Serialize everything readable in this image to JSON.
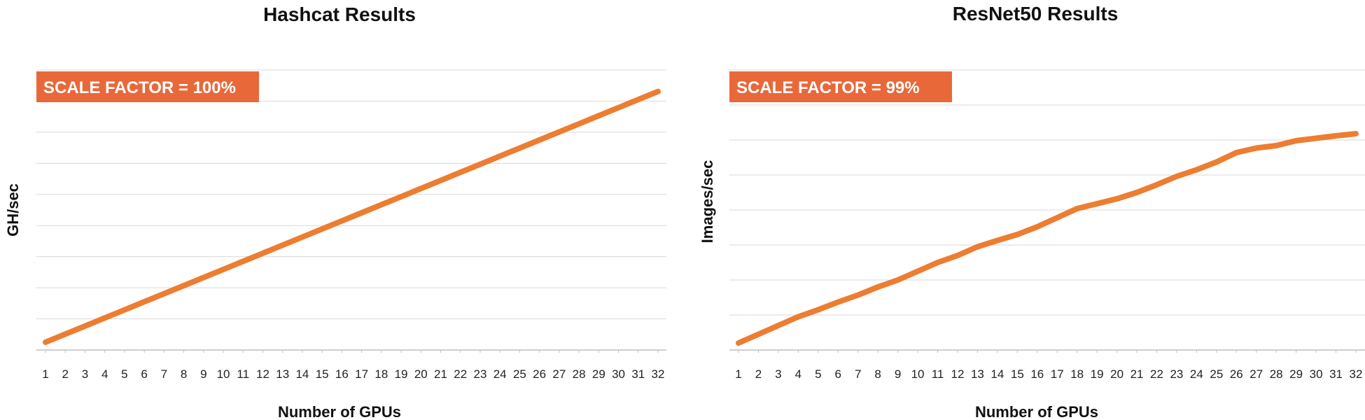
{
  "colors": {
    "line": "#ED7D31",
    "badge": "#E8683A",
    "grid": "#D9D9D9",
    "axis": "#BFBFBF"
  },
  "chart_data": [
    {
      "type": "line",
      "title": "Hashcat Results",
      "xlabel": "Number of GPUs",
      "ylabel": "GH/sec",
      "annotation": "SCALE FACTOR = 100%",
      "grid": true,
      "y_tick_labels_shown": false,
      "gridline_count": 9,
      "ylim": [
        0,
        9
      ],
      "x": [
        1,
        2,
        3,
        4,
        5,
        6,
        7,
        8,
        9,
        10,
        11,
        12,
        13,
        14,
        15,
        16,
        17,
        18,
        19,
        20,
        21,
        22,
        23,
        24,
        25,
        26,
        27,
        28,
        29,
        30,
        31,
        32
      ],
      "series": [
        {
          "values": [
            0.25,
            0.51,
            0.77,
            1.03,
            1.29,
            1.55,
            1.81,
            2.07,
            2.33,
            2.59,
            2.85,
            3.11,
            3.37,
            3.63,
            3.89,
            4.15,
            4.41,
            4.67,
            4.93,
            5.19,
            5.45,
            5.71,
            5.97,
            6.23,
            6.49,
            6.75,
            7.01,
            7.27,
            7.53,
            7.79,
            8.05,
            8.31
          ]
        }
      ]
    },
    {
      "type": "line",
      "title": "ResNet50 Results",
      "xlabel": "Number of GPUs",
      "ylabel": "Images/sec",
      "annotation": "SCALE FACTOR = 99%",
      "grid": true,
      "y_tick_labels_shown": false,
      "gridline_count": 8,
      "ylim": [
        0,
        8
      ],
      "x": [
        1,
        2,
        3,
        4,
        5,
        6,
        7,
        8,
        9,
        10,
        11,
        12,
        13,
        14,
        15,
        16,
        17,
        18,
        19,
        20,
        21,
        22,
        23,
        24,
        25,
        26,
        27,
        28,
        29,
        30,
        31,
        32
      ],
      "series": [
        {
          "values": [
            0.2,
            0.45,
            0.7,
            0.95,
            1.15,
            1.37,
            1.57,
            1.8,
            2.0,
            2.25,
            2.5,
            2.7,
            2.95,
            3.13,
            3.3,
            3.52,
            3.78,
            4.04,
            4.18,
            4.32,
            4.5,
            4.72,
            4.96,
            5.15,
            5.37,
            5.64,
            5.77,
            5.84,
            5.98,
            6.05,
            6.12,
            6.18
          ]
        }
      ]
    }
  ]
}
